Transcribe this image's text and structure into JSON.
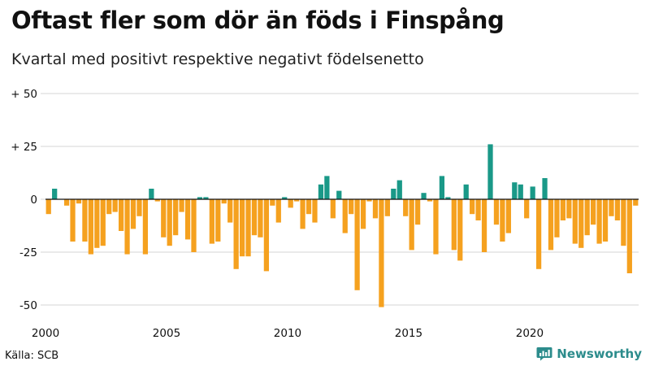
{
  "header": {
    "title": "Oftast fler som dör än föds i Finspång",
    "subtitle": "Kvartal med positivt respektive negativt födelsenetto"
  },
  "footer": {
    "source": "Källa: SCB",
    "brand": "Newsworthy"
  },
  "colors": {
    "positive": "#1a9988",
    "negative": "#f5a11f",
    "brand": "#2c8c8c"
  },
  "chart_data": {
    "type": "bar",
    "title": "Oftast fler som dör än föds i Finspång",
    "subtitle": "Kvartal med positivt respektive negativt födelsenetto",
    "xlabel": "",
    "ylabel": "",
    "ylim": [
      -50,
      50
    ],
    "yticks": [
      {
        "value": 50,
        "label": "+ 50"
      },
      {
        "value": 25,
        "label": "+ 25"
      },
      {
        "value": 0,
        "label": "0"
      },
      {
        "value": -25,
        "label": "-25"
      },
      {
        "value": -50,
        "label": "-50"
      }
    ],
    "xticks": [
      "2000",
      "2005",
      "2010",
      "2015",
      "2020"
    ],
    "start_year": 2000,
    "quarters_per_year": 4,
    "grid": true,
    "values": [
      -7,
      5,
      0,
      -3,
      -20,
      -2,
      -20,
      -26,
      -23,
      -22,
      -7,
      -6,
      -15,
      -26,
      -14,
      -8,
      -26,
      5,
      -1,
      -18,
      -22,
      -17,
      -6,
      -19,
      -25,
      1,
      1,
      -21,
      -20,
      -2,
      -11,
      -33,
      -27,
      -27,
      -17,
      -18,
      -34,
      -3,
      -11,
      1,
      -4,
      -1,
      -14,
      -7,
      -11,
      7,
      11,
      -9,
      4,
      -16,
      -7,
      -43,
      -14,
      -1,
      -9,
      -51,
      -8,
      5,
      9,
      -8,
      -24,
      -12,
      3,
      -1,
      -26,
      11,
      1,
      -24,
      -29,
      7,
      -7,
      -10,
      -25,
      26,
      -12,
      -20,
      -16,
      8,
      7,
      -9,
      6,
      -33,
      10,
      -24,
      -18,
      -10,
      -9,
      -21,
      -23,
      -17,
      -12,
      -21,
      -20,
      -8,
      -10,
      -22,
      -35,
      -3
    ]
  }
}
